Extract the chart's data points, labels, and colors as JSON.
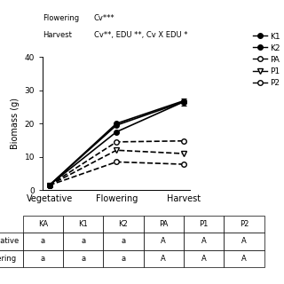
{
  "x_labels": [
    "Vegetative",
    "Flowering",
    "Harvest"
  ],
  "x_positions": [
    0,
    1,
    2
  ],
  "series": [
    {
      "name": "KA",
      "values": [
        1.5,
        17.5,
        26.5
      ],
      "color": "#000000",
      "marker": "o",
      "markersize": 4,
      "linestyle": "-",
      "fillstyle": "full",
      "linewidth": 1.2,
      "yerr": [
        0,
        0,
        1.0
      ]
    },
    {
      "name": "K1",
      "values": [
        1.5,
        19.5,
        26.5
      ],
      "color": "#000000",
      "marker": "o",
      "markersize": 4,
      "linestyle": "-",
      "fillstyle": "full",
      "linewidth": 1.2,
      "yerr": [
        0,
        0,
        0
      ]
    },
    {
      "name": "K2",
      "values": [
        1.5,
        20.0,
        26.8
      ],
      "color": "#000000",
      "marker": "o",
      "markersize": 4,
      "linestyle": "-",
      "fillstyle": "full",
      "linewidth": 1.2,
      "yerr": [
        0,
        0,
        0
      ]
    },
    {
      "name": "PA",
      "values": [
        1.5,
        8.5,
        7.8
      ],
      "color": "#000000",
      "marker": "o",
      "markersize": 4,
      "linestyle": "--",
      "fillstyle": "none",
      "linewidth": 1.2,
      "yerr": [
        0,
        0,
        0
      ]
    },
    {
      "name": "P1",
      "values": [
        1.5,
        12.0,
        11.0
      ],
      "color": "#000000",
      "marker": "v",
      "markersize": 4,
      "linestyle": "--",
      "fillstyle": "none",
      "linewidth": 1.2,
      "yerr": [
        0,
        0,
        0
      ]
    },
    {
      "name": "P2",
      "values": [
        1.5,
        14.5,
        14.8
      ],
      "color": "#000000",
      "marker": "o",
      "markersize": 4,
      "linestyle": "--",
      "fillstyle": "none",
      "linewidth": 1.2,
      "yerr": [
        0,
        0,
        0
      ]
    }
  ],
  "ylabel": "Biomass (g)",
  "ylim": [
    0,
    40
  ],
  "yticks": [
    0,
    10,
    20,
    30,
    40
  ],
  "top_text_line1_label": "Flowering",
  "top_text_line1_value": "Cv***",
  "top_text_line2_label": "Harvest",
  "top_text_line2_value": "Cv**, EDU **, Cv X EDU *",
  "legend_entries": [
    {
      "name": "K1",
      "marker": "o",
      "fillstyle": "full",
      "linestyle": "-"
    },
    {
      "name": "K2",
      "marker": "o",
      "fillstyle": "full",
      "linestyle": "-"
    },
    {
      "name": "PA",
      "marker": "o",
      "fillstyle": "none",
      "linestyle": "-"
    },
    {
      "name": "P1",
      "marker": "v",
      "fillstyle": "none",
      "linestyle": "-"
    },
    {
      "name": "P2",
      "marker": "o",
      "fillstyle": "none",
      "linestyle": "-"
    }
  ],
  "table_cols": [
    "KA",
    "K1",
    "K2",
    "PA",
    "P1",
    "P2"
  ],
  "table_rows": [
    "Vegetative",
    "Flowering"
  ],
  "table_data": [
    [
      "a",
      "a",
      "a",
      "A",
      "A",
      "A"
    ],
    [
      "a",
      "a",
      "a",
      "A",
      "A",
      "A"
    ]
  ],
  "background_color": "#ffffff"
}
